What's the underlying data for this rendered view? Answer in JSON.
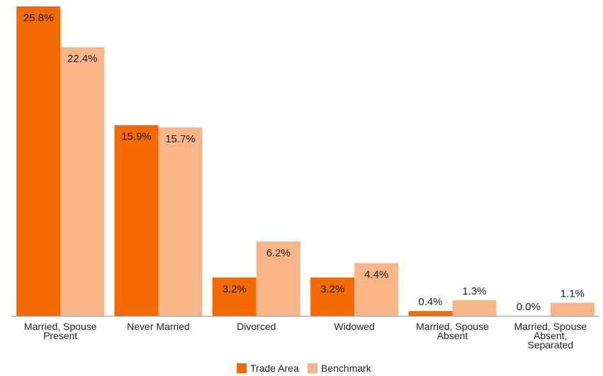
{
  "chart_data": {
    "type": "bar",
    "title": "",
    "xlabel": "",
    "ylabel": "",
    "ylim": [
      0,
      25.8
    ],
    "grid": false,
    "legend_position": "bottom-center",
    "categories": [
      [
        "Married, Spouse",
        "Present"
      ],
      [
        "Never Married"
      ],
      [
        "Divorced"
      ],
      [
        "Widowed"
      ],
      [
        "Married, Spouse",
        "Absent"
      ],
      [
        "Married, Spouse",
        "Absent,",
        "Separated"
      ]
    ],
    "series": [
      {
        "name": "Trade Area",
        "color": "#f26a00",
        "values": [
          25.8,
          15.9,
          3.2,
          3.2,
          0.4,
          0.0
        ],
        "labels": [
          "25.8%",
          "15.9%",
          "3.2%",
          "3.2%",
          "0.4%",
          "0.0%"
        ]
      },
      {
        "name": "Benchmark",
        "color": "#f8b587",
        "values": [
          22.4,
          15.7,
          6.2,
          4.4,
          1.3,
          1.1
        ],
        "labels": [
          "22.4%",
          "15.7%",
          "6.2%",
          "4.4%",
          "1.3%",
          "1.1%"
        ]
      }
    ],
    "axis_color": "#999999"
  }
}
